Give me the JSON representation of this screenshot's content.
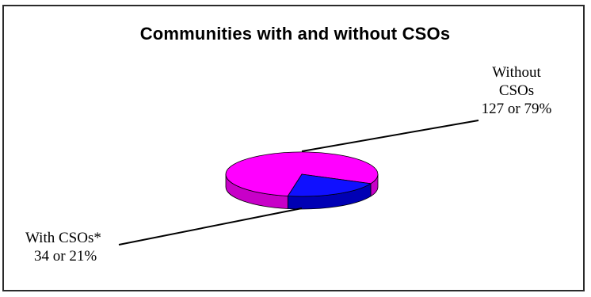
{
  "chart_data": {
    "type": "pie",
    "title": "Communities with and without CSOs",
    "slices": [
      {
        "name_line1": "Without",
        "name_line2": "CSOs",
        "label_value": "127 or 79%",
        "count": 127,
        "percent": 79,
        "color": "#ff00ff",
        "side_color": "#c800c8"
      },
      {
        "name_line1": "With CSOs*",
        "label_value": "34 or 21%",
        "count": 34,
        "percent": 21,
        "color": "#1010ff",
        "side_color": "#0000b4"
      }
    ],
    "style": "3d-pie",
    "legend": "none"
  }
}
